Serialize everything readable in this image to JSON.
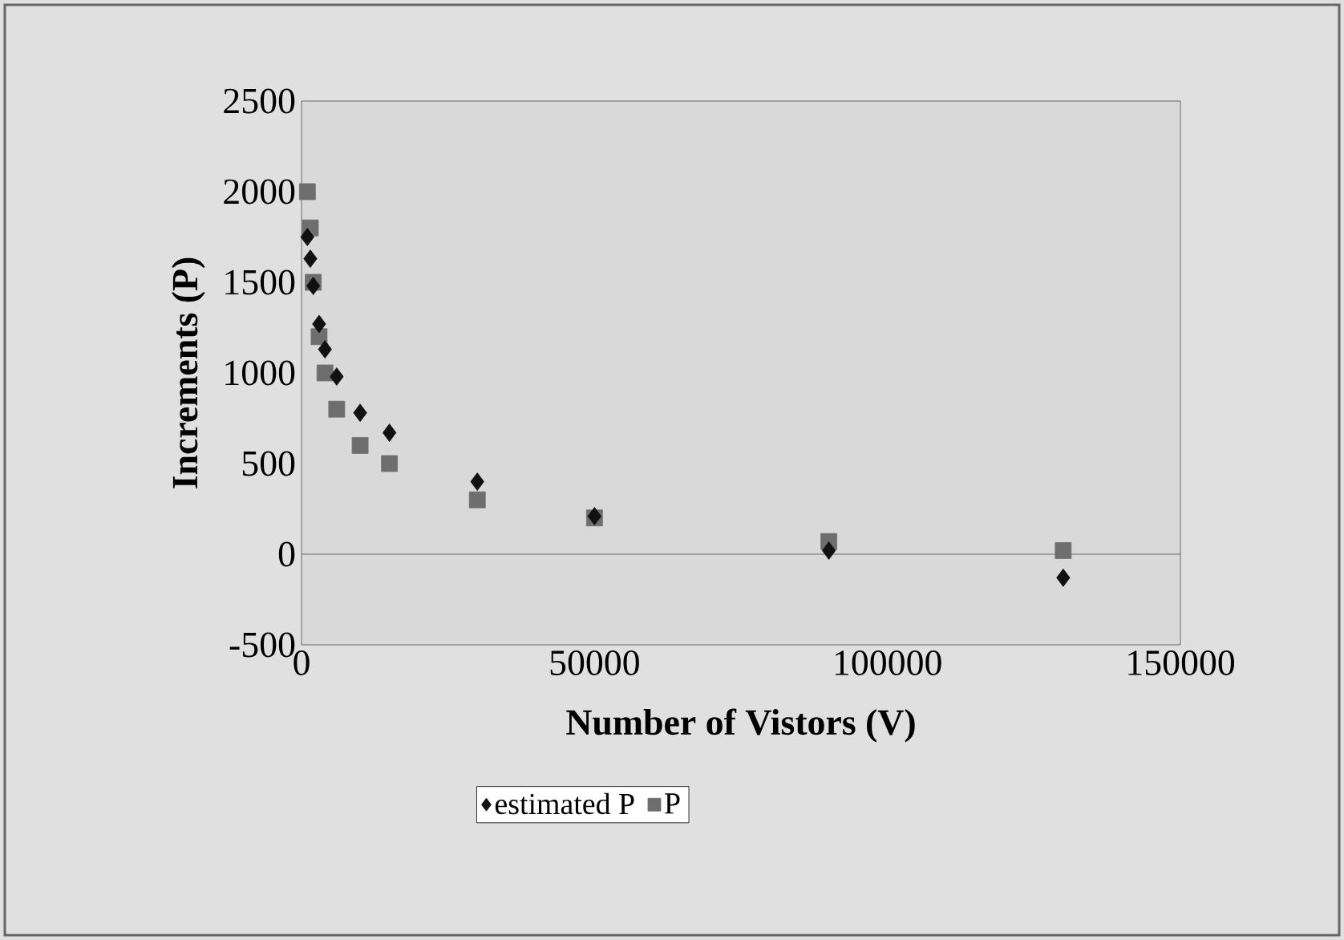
{
  "chart_data": {
    "type": "scatter",
    "xlabel": "Number of Vistors (V)",
    "ylabel": "Increments (P)",
    "x": [
      1000,
      1500,
      2000,
      3000,
      4000,
      6000,
      10000,
      15000,
      30000,
      50000,
      90000,
      130000
    ],
    "series": [
      {
        "name": "estimated P",
        "color": "#111111",
        "marker": "diamond",
        "values": [
          1750,
          1630,
          1480,
          1270,
          1130,
          980,
          780,
          670,
          400,
          210,
          20,
          -130
        ]
      },
      {
        "name": "P",
        "color": "#6e6e6e",
        "marker": "square",
        "values": [
          2000,
          1800,
          1500,
          1200,
          1000,
          800,
          600,
          500,
          300,
          200,
          70,
          20
        ]
      }
    ],
    "xlim": [
      0,
      150000
    ],
    "xticks": [
      0,
      50000,
      100000,
      150000
    ],
    "ylim": [
      -500,
      2500
    ],
    "yticks": [
      -500,
      0,
      500,
      1000,
      1500,
      2000,
      2500
    ],
    "ref_lines": [
      {
        "axis": "y",
        "value": 0,
        "color": "#4c4c4c"
      }
    ],
    "grid": false,
    "legend": "bottom"
  }
}
